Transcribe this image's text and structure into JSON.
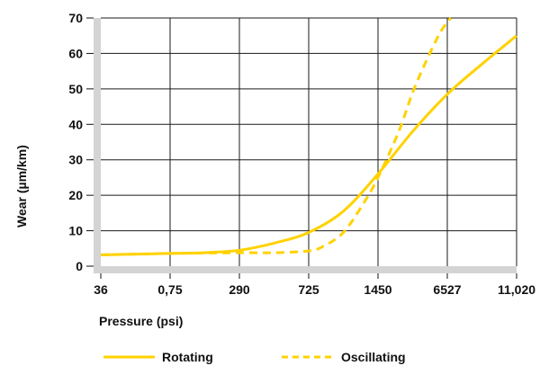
{
  "chart_data": {
    "type": "line",
    "xlabel": "Pressure (psi)",
    "ylabel": "Wear (µm/km)",
    "categories": [
      "36",
      "0,75",
      "290",
      "725",
      "1450",
      "6527",
      "11,020"
    ],
    "ylim": [
      0,
      70
    ],
    "yticks": [
      0,
      10,
      20,
      30,
      40,
      50,
      60,
      70
    ],
    "grid": true,
    "legend_position": "bottom",
    "series": [
      {
        "name": "Rotating",
        "style": "solid",
        "color": "#FFD200",
        "x": [
          0,
          0.5,
          1,
          1.5,
          2,
          2.5,
          3,
          3.5,
          4,
          4.5,
          5,
          5.5,
          6
        ],
        "y": [
          3.2,
          3.4,
          3.6,
          3.8,
          4.5,
          6.5,
          9.5,
          15.5,
          26,
          38,
          48.5,
          57,
          65
        ]
      },
      {
        "name": "Oscillating",
        "style": "dashed",
        "color": "#FFD200",
        "x": [
          0,
          0.5,
          1,
          1.5,
          2,
          2.5,
          3,
          3.2,
          3.5,
          3.8,
          4,
          4.3,
          4.5,
          4.7,
          4.9,
          5.05
        ],
        "y": [
          3.2,
          3.4,
          3.6,
          3.7,
          3.8,
          3.8,
          4.3,
          5.5,
          9.5,
          18,
          25,
          38,
          49,
          58,
          66,
          70
        ]
      }
    ]
  }
}
